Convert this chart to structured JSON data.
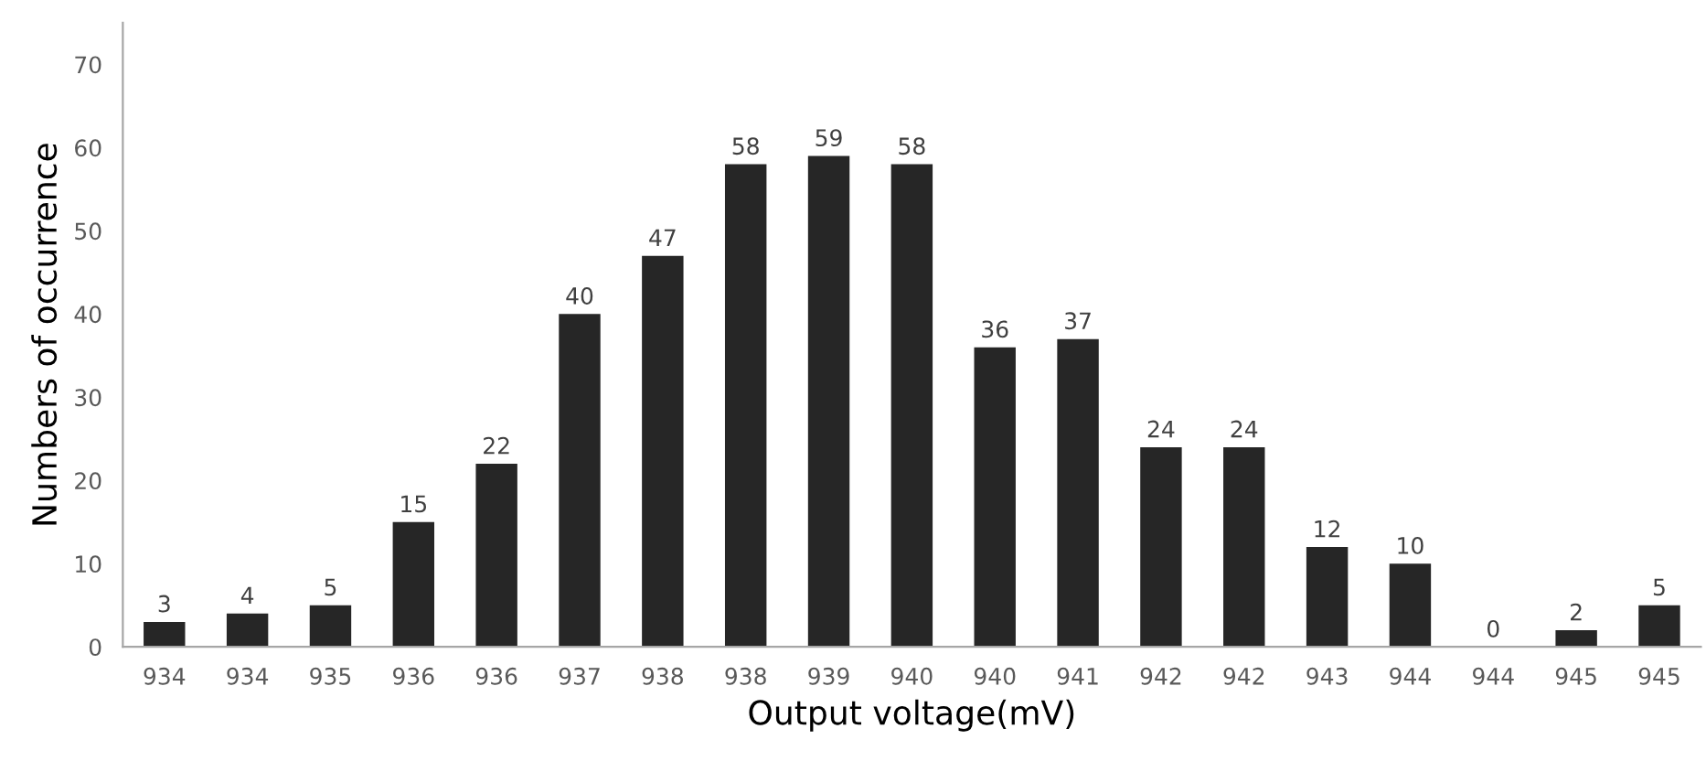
{
  "chart_data": {
    "type": "bar",
    "xlabel": "Output voltage(mV)",
    "ylabel": "Numbers of occurrence",
    "categories": [
      "934",
      "934",
      "935",
      "936",
      "936",
      "937",
      "938",
      "938",
      "939",
      "940",
      "940",
      "941",
      "942",
      "942",
      "943",
      "944",
      "944",
      "945",
      "945"
    ],
    "values": [
      3,
      4,
      5,
      15,
      22,
      40,
      47,
      58,
      59,
      58,
      36,
      37,
      24,
      24,
      12,
      10,
      0,
      2,
      5
    ],
    "color": "#262626",
    "ylim": [
      0,
      75
    ],
    "yticks": [
      0,
      10,
      20,
      30,
      40,
      50,
      60,
      70
    ],
    "grid": false,
    "data_labels": true
  }
}
